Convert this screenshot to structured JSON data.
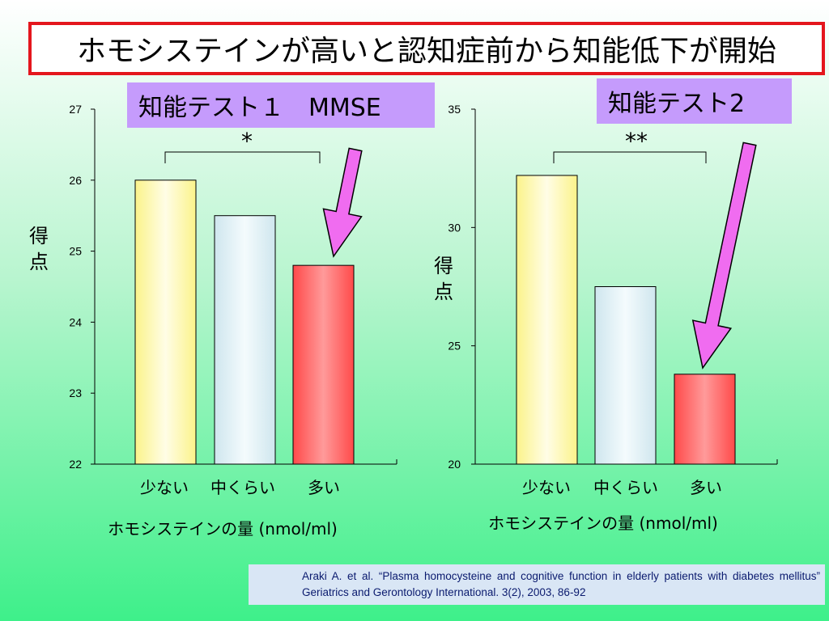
{
  "title": "ホモシステインが高いと認知症前から知能低下が開始",
  "reference": "Araki A. et al. “Plasma homocysteine and cognitive function in elderly patients with diabetes mellitus” Geriatrics and Gerontology International. 3(2), 2003, 86-92",
  "colors": {
    "title_border": "#e4161d",
    "label_bg": "#c59bfc",
    "arrow": "#f06cf0",
    "bar_low": "#fbf38a",
    "bar_mid": "#cfe6ee",
    "bar_high": "#ff4a4a"
  },
  "chart_data": [
    {
      "type": "bar",
      "title": "知能テスト１　MMSE",
      "ylabel": "得点",
      "categories": [
        "少ない",
        "中くらい",
        "多い"
      ],
      "xlabel": "ホモシステインの量 (nmol/ml)",
      "values": [
        26.0,
        25.5,
        24.8
      ],
      "ylim": [
        22,
        27
      ],
      "yticks": [
        "22",
        "23",
        "24",
        "25",
        "26",
        "27"
      ],
      "significance": "*",
      "grid": false
    },
    {
      "type": "bar",
      "title": "知能テスト2",
      "ylabel": "得点",
      "categories": [
        "少ない",
        "中くらい",
        "多い"
      ],
      "xlabel": "ホモシステインの量 (nmol/ml)",
      "values": [
        32.2,
        27.5,
        23.8
      ],
      "ylim": [
        20,
        35
      ],
      "yticks": [
        "20",
        "25",
        "30",
        "35"
      ],
      "significance": "**",
      "grid": false
    }
  ]
}
